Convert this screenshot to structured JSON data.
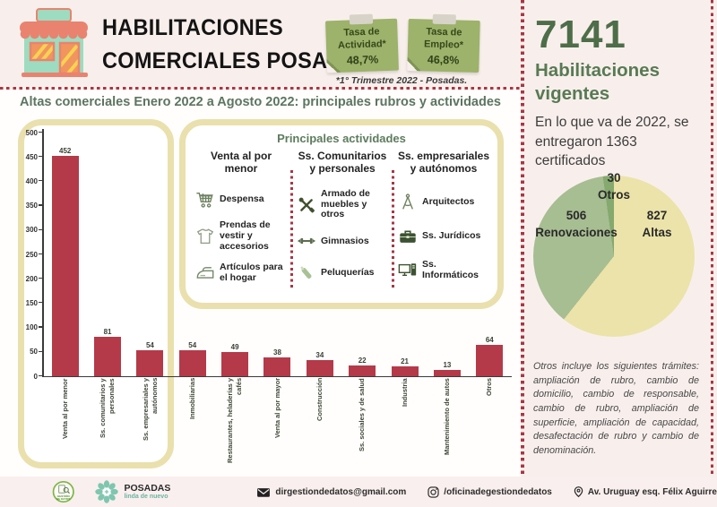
{
  "header": {
    "title_line1": "HABILITACIONES",
    "title_line2": "COMERCIALES POSADAS",
    "notes": [
      {
        "label": "Tasa de Actividad*",
        "value": "48,7%"
      },
      {
        "label": "Tasa de Empleo*",
        "value": "46,8%"
      }
    ],
    "footnote": "*1° Trimestre 2022 - Posadas."
  },
  "left": {
    "section_title": "Altas comerciales Enero 2022 a Agosto 2022: principales rubros y actividades",
    "activities": {
      "title": "Principales actividades",
      "columns": [
        {
          "heading": "Venta al por menor",
          "items": [
            {
              "icon": "shopping-cart-icon",
              "label": "Despensa"
            },
            {
              "icon": "tshirt-icon",
              "label": "Prendas de vestir y accesorios"
            },
            {
              "icon": "iron-icon",
              "label": "Artículos para el hogar"
            }
          ]
        },
        {
          "heading": "Ss. Comunitarios y personales",
          "items": [
            {
              "icon": "tools-icon",
              "label": "Armado de muebles y otros"
            },
            {
              "icon": "dumbbell-icon",
              "label": "Gimnasios"
            },
            {
              "icon": "razor-icon",
              "label": "Peluquerías"
            }
          ]
        },
        {
          "heading": "Ss. empresariales y autónomos",
          "items": [
            {
              "icon": "drafting-compass-icon",
              "label": "Arquitectos"
            },
            {
              "icon": "briefcase-icon",
              "label": "Ss. Jurídicos"
            },
            {
              "icon": "computer-icon",
              "label": "Ss. Informáticos"
            }
          ]
        }
      ]
    }
  },
  "chart_data": [
    {
      "type": "bar",
      "title": "Altas comerciales Enero 2022 a Agosto 2022: principales rubros y actividades",
      "categories": [
        "Venta al por menor",
        "Ss. comunitarios y personales",
        "Ss. empresariales y autónomos",
        "Inmobiliarias",
        "Restaurantes, heladerías y cafés",
        "Venta al por mayor",
        "Construcción",
        "Ss. sociales y de salud",
        "Industria",
        "Mantenimiento de autos",
        "Otros"
      ],
      "values": [
        452,
        81,
        54,
        54,
        49,
        38,
        34,
        22,
        21,
        13,
        64
      ],
      "xlabel": "",
      "ylabel": "",
      "ylim": [
        0,
        500
      ],
      "ytick_step": 50,
      "grid": false,
      "bar_color": "#b43a49"
    },
    {
      "type": "pie",
      "title": "Habilitaciones vigentes 2022",
      "slices": [
        {
          "label": "Altas",
          "value": 827,
          "color": "#ebe3a9"
        },
        {
          "label": "Renovaciones",
          "value": 506,
          "color": "#a7bd92"
        },
        {
          "label": "Otros",
          "value": 30,
          "color": "#85a96e"
        }
      ],
      "start_angle_deg": 0,
      "direction": "clockwise",
      "legend_position": "labels-on-chart"
    }
  ],
  "right": {
    "big_number": "7141",
    "big_label": "Habilitaciones vigentes",
    "subtext": "En lo que va de 2022, se entregaron 1363 certificados",
    "otros_note": "Otros incluye los siguientes trámites: ampliación de rubro, cambio de domicilio, cambio de responsable, cambio de rubro, ampliación de superficie, ampliación de capacidad, desafectación de rubro y cambio de denominación."
  },
  "footer": {
    "logo1_text": "GESTIÓN DE DATOS",
    "logo2_name": "POSADAS",
    "logo2_tagline": "linda de nuevo",
    "email": "dirgestiondedatos@gmail.com",
    "instagram": "/oficinadegestiondedatos",
    "address": "Av. Uruguay esq. Félix Aguirre"
  },
  "colors": {
    "background_pink": "#f8efec",
    "bar_red": "#b43a49",
    "khaki_border": "#eae0ad",
    "dotted_red": "#a83744",
    "green_heading": "#5d7c5d",
    "dark_green_number": "#4e6d49",
    "sticky_note_green": "#9db26a",
    "pie_yellow": "#ebe3a9",
    "pie_green": "#a7bd92",
    "pie_dark_green": "#85a96e"
  }
}
